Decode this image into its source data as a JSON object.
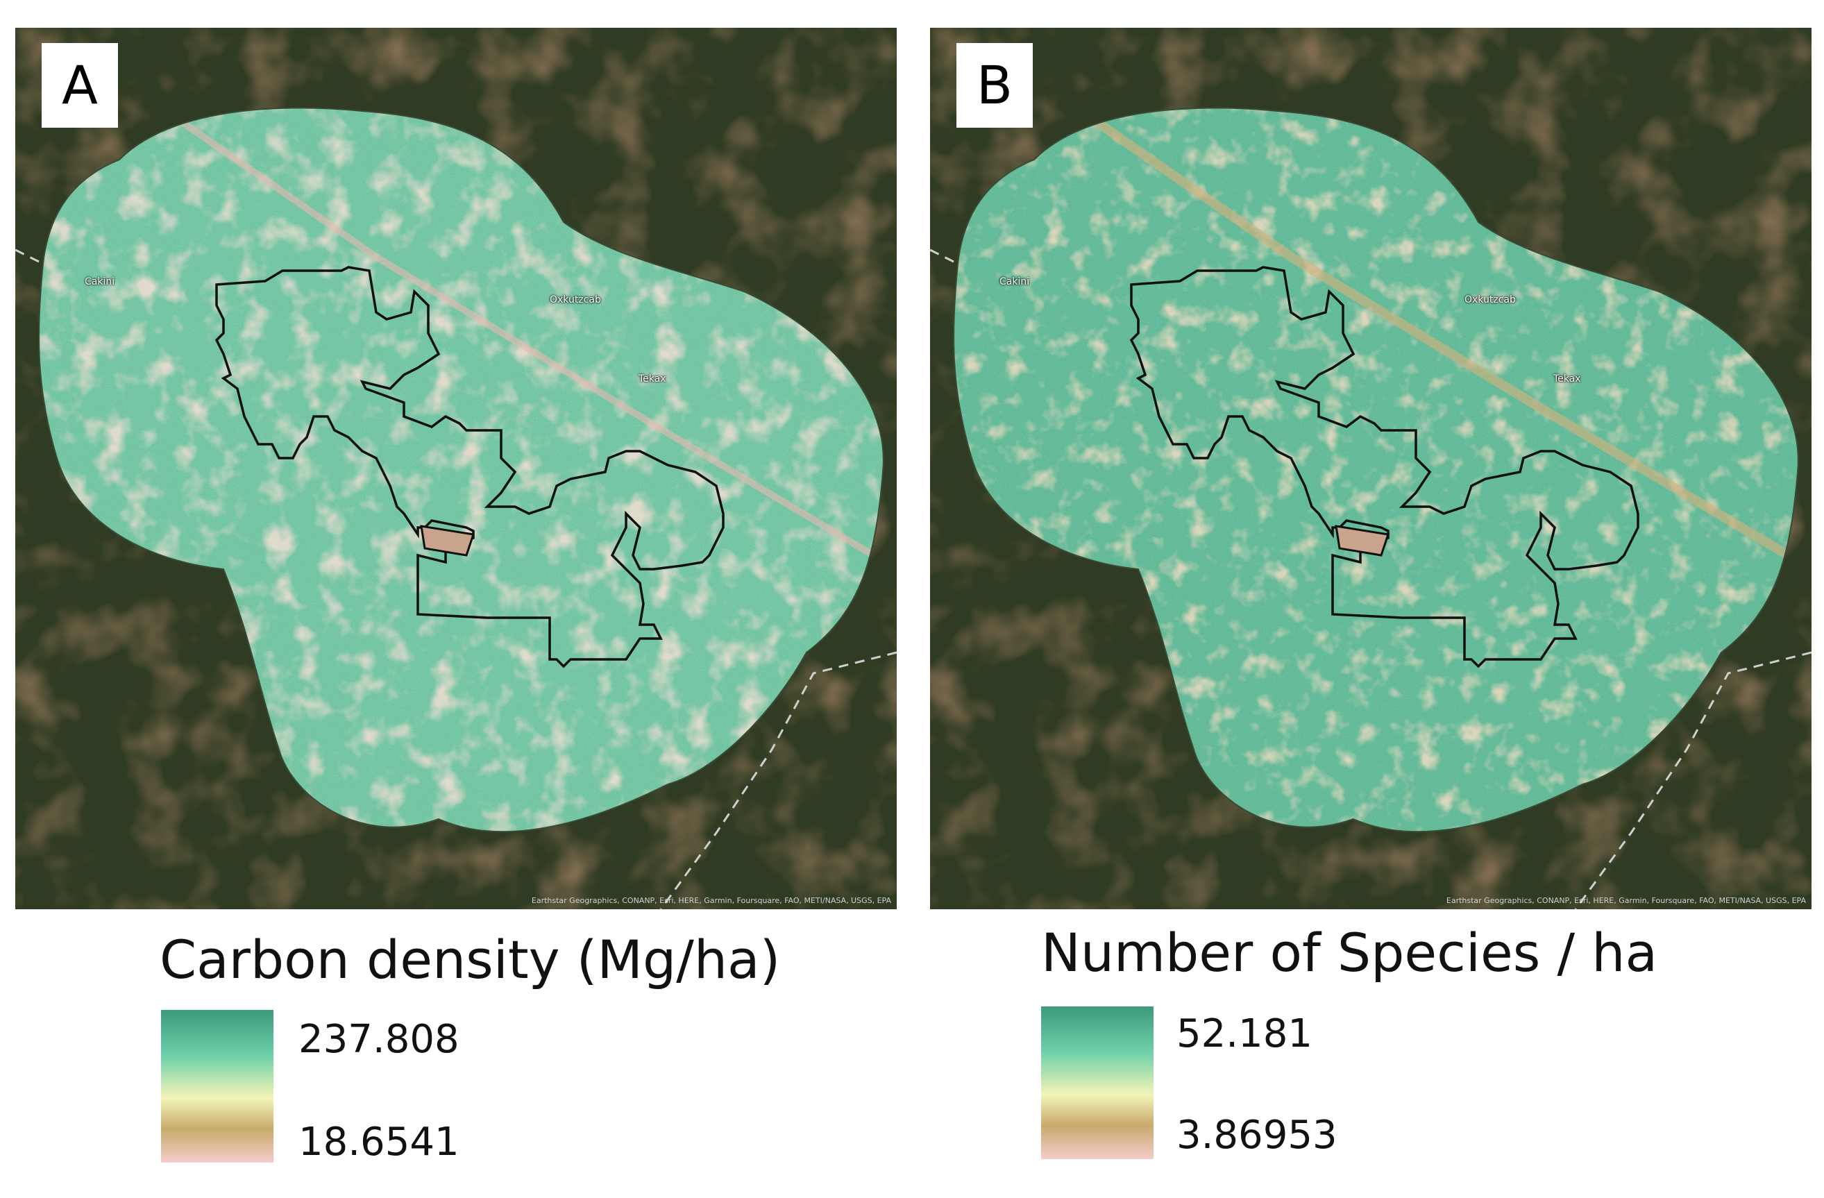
{
  "panels": [
    {
      "letter": "A",
      "places": [
        "Cakini",
        "Oxkutzcab",
        "Tekax"
      ],
      "attribution": "Earthstar Geographics, CONANP, Esri, HERE, Garmin, Foursquare, FAO, METI/NASA, USGS, EPA",
      "legend": {
        "title": "Carbon density (Mg/ha)",
        "max_label": "237.808",
        "min_label": "18.6541",
        "colors": [
          "#3d9a7c",
          "#6fd0aa",
          "#f3f4b8",
          "#c8aa6c",
          "#f4cdca"
        ]
      }
    },
    {
      "letter": "B",
      "places": [
        "Cakini",
        "Oxkutzcab",
        "Tekax"
      ],
      "attribution": "Earthstar Geographics, CONANP, Esri, HERE, Garmin, Foursquare, FAO, METI/NASA, USGS, EPA",
      "legend": {
        "title": "Number of Species / ha",
        "max_label": "52.181",
        "min_label": "3.86953",
        "colors": [
          "#3d9a7c",
          "#6fd0aa",
          "#f3f4b8",
          "#c8aa6c",
          "#f4cdca"
        ]
      }
    }
  ],
  "colors": {
    "basemap": "#2f3b22",
    "raster_a": "#6fc3a0",
    "raster_b": "#5fb896",
    "boundary": "#111111"
  }
}
